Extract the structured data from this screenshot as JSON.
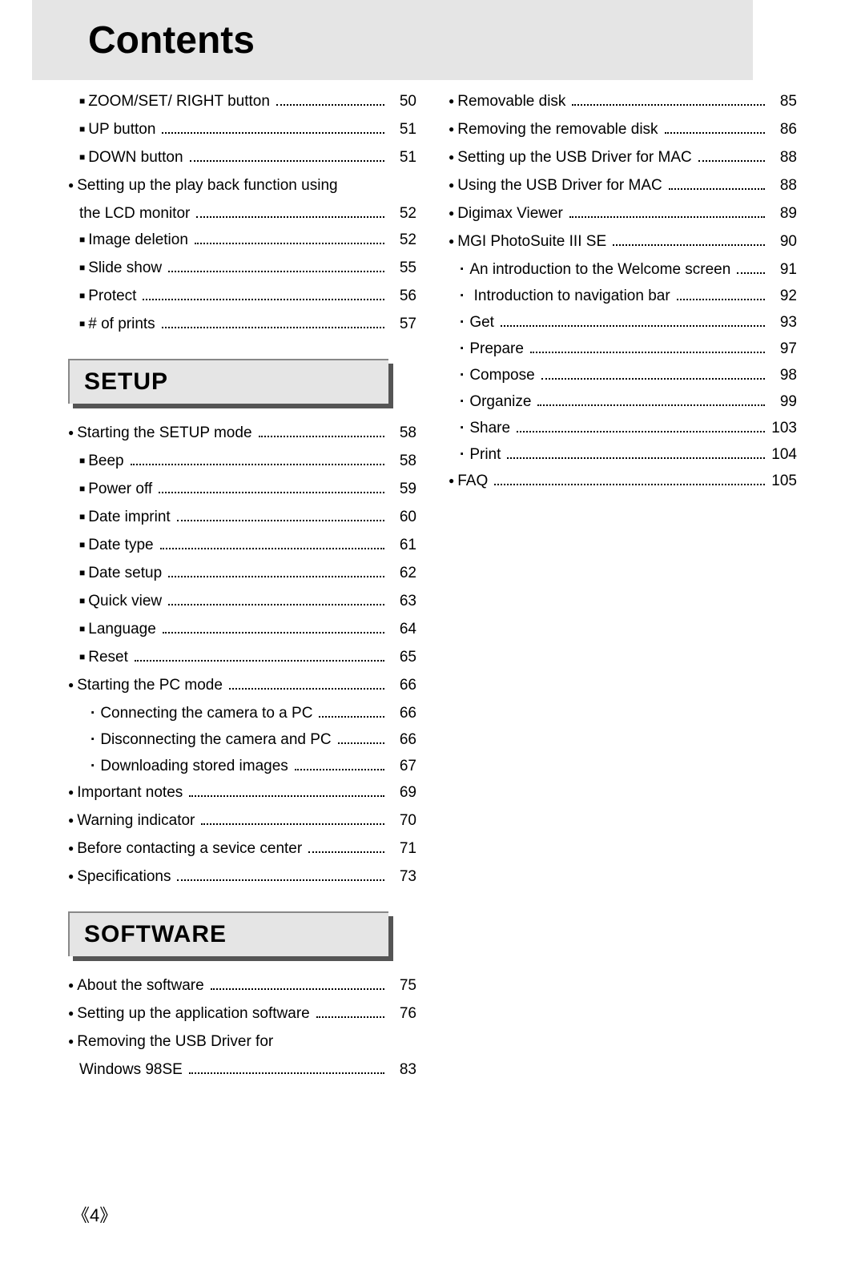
{
  "title": "Contents",
  "page_number": "4",
  "sections": {
    "setup": "SETUP",
    "software": "SOFTWARE"
  },
  "col1_top": [
    {
      "b": "square",
      "i": 1,
      "label": "ZOOM/SET/ RIGHT button",
      "page": "50"
    },
    {
      "b": "square",
      "i": 1,
      "label": "UP  button",
      "page": "51"
    },
    {
      "b": "square",
      "i": 1,
      "label": "DOWN button",
      "page": "51"
    },
    {
      "b": "circle",
      "i": 0,
      "label": "Setting up the play back function using",
      "page": "",
      "noleader": true
    },
    {
      "b": "none",
      "i": 1,
      "label": "the LCD monitor",
      "page": "52"
    },
    {
      "b": "square",
      "i": 1,
      "label": "Image deletion",
      "page": "52"
    },
    {
      "b": "square",
      "i": 1,
      "label": "Slide show",
      "page": "55"
    },
    {
      "b": "square",
      "i": 1,
      "label": "Protect",
      "page": "56"
    },
    {
      "b": "square",
      "i": 1,
      "label": "# of prints",
      "page": "57"
    }
  ],
  "col1_setup": [
    {
      "b": "circle",
      "i": 0,
      "label": "Starting the SETUP mode",
      "page": "58"
    },
    {
      "b": "square",
      "i": 1,
      "label": "Beep",
      "page": "58"
    },
    {
      "b": "square",
      "i": 1,
      "label": "Power off",
      "page": "59"
    },
    {
      "b": "square",
      "i": 1,
      "label": "Date imprint",
      "page": "60"
    },
    {
      "b": "square",
      "i": 1,
      "label": "Date type",
      "page": "61"
    },
    {
      "b": "square",
      "i": 1,
      "label": "Date setup",
      "page": "62"
    },
    {
      "b": "square",
      "i": 1,
      "label": "Quick view",
      "page": "63"
    },
    {
      "b": "square",
      "i": 1,
      "label": "Language",
      "page": "64"
    },
    {
      "b": "square",
      "i": 1,
      "label": "Reset",
      "page": "65"
    },
    {
      "b": "circle",
      "i": 0,
      "label": "Starting the PC mode",
      "page": "66"
    },
    {
      "b": "dot",
      "i": 2,
      "label": "Connecting the camera to a PC",
      "page": "66"
    },
    {
      "b": "dot",
      "i": 2,
      "label": "Disconnecting the camera and PC",
      "page": "66"
    },
    {
      "b": "dot",
      "i": 2,
      "label": "Downloading stored images",
      "page": "67"
    },
    {
      "b": "circle",
      "i": 0,
      "label": "Important notes",
      "page": "69"
    },
    {
      "b": "circle",
      "i": 0,
      "label": "Warning indicator",
      "page": "70"
    },
    {
      "b": "circle",
      "i": 0,
      "label": "Before contacting a sevice center",
      "page": "71"
    },
    {
      "b": "circle",
      "i": 0,
      "label": "Specifications",
      "page": "73"
    }
  ],
  "col1_software": [
    {
      "b": "circle",
      "i": 0,
      "label": "About the software",
      "page": "75"
    },
    {
      "b": "circle",
      "i": 0,
      "label": "Setting up the application software",
      "page": "76"
    },
    {
      "b": "circle",
      "i": 0,
      "label": "Removing the USB Driver for",
      "page": "",
      "noleader": true
    },
    {
      "b": "none",
      "i": 1,
      "label": "Windows 98SE",
      "page": "83"
    }
  ],
  "col2": [
    {
      "b": "circle",
      "i": 0,
      "label": "Removable disk",
      "page": "85"
    },
    {
      "b": "circle",
      "i": 0,
      "label": "Removing the removable disk",
      "page": "86"
    },
    {
      "b": "circle",
      "i": 0,
      "label": "Setting up the USB Driver for MAC",
      "page": "88"
    },
    {
      "b": "circle",
      "i": 0,
      "label": "Using the USB Driver for MAC",
      "page": "88"
    },
    {
      "b": "circle",
      "i": 0,
      "label": "Digimax Viewer",
      "page": "89"
    },
    {
      "b": "circle",
      "i": 0,
      "label": "MGI PhotoSuite III SE",
      "page": "90"
    },
    {
      "b": "dot",
      "i": 1,
      "label": "An introduction to the Welcome screen",
      "page": "91"
    },
    {
      "b": "dot",
      "i": 1,
      "label": " Introduction to navigation bar",
      "page": "92"
    },
    {
      "b": "dot",
      "i": 1,
      "label": "Get",
      "page": "93"
    },
    {
      "b": "dot",
      "i": 1,
      "label": "Prepare",
      "page": "97"
    },
    {
      "b": "dot",
      "i": 1,
      "label": "Compose",
      "page": "98"
    },
    {
      "b": "dot",
      "i": 1,
      "label": "Organize",
      "page": "99"
    },
    {
      "b": "dot",
      "i": 1,
      "label": "Share",
      "page": "103"
    },
    {
      "b": "dot",
      "i": 1,
      "label": "Print",
      "page": "104"
    },
    {
      "b": "circle",
      "i": 0,
      "label": "FAQ",
      "page": "105"
    }
  ]
}
